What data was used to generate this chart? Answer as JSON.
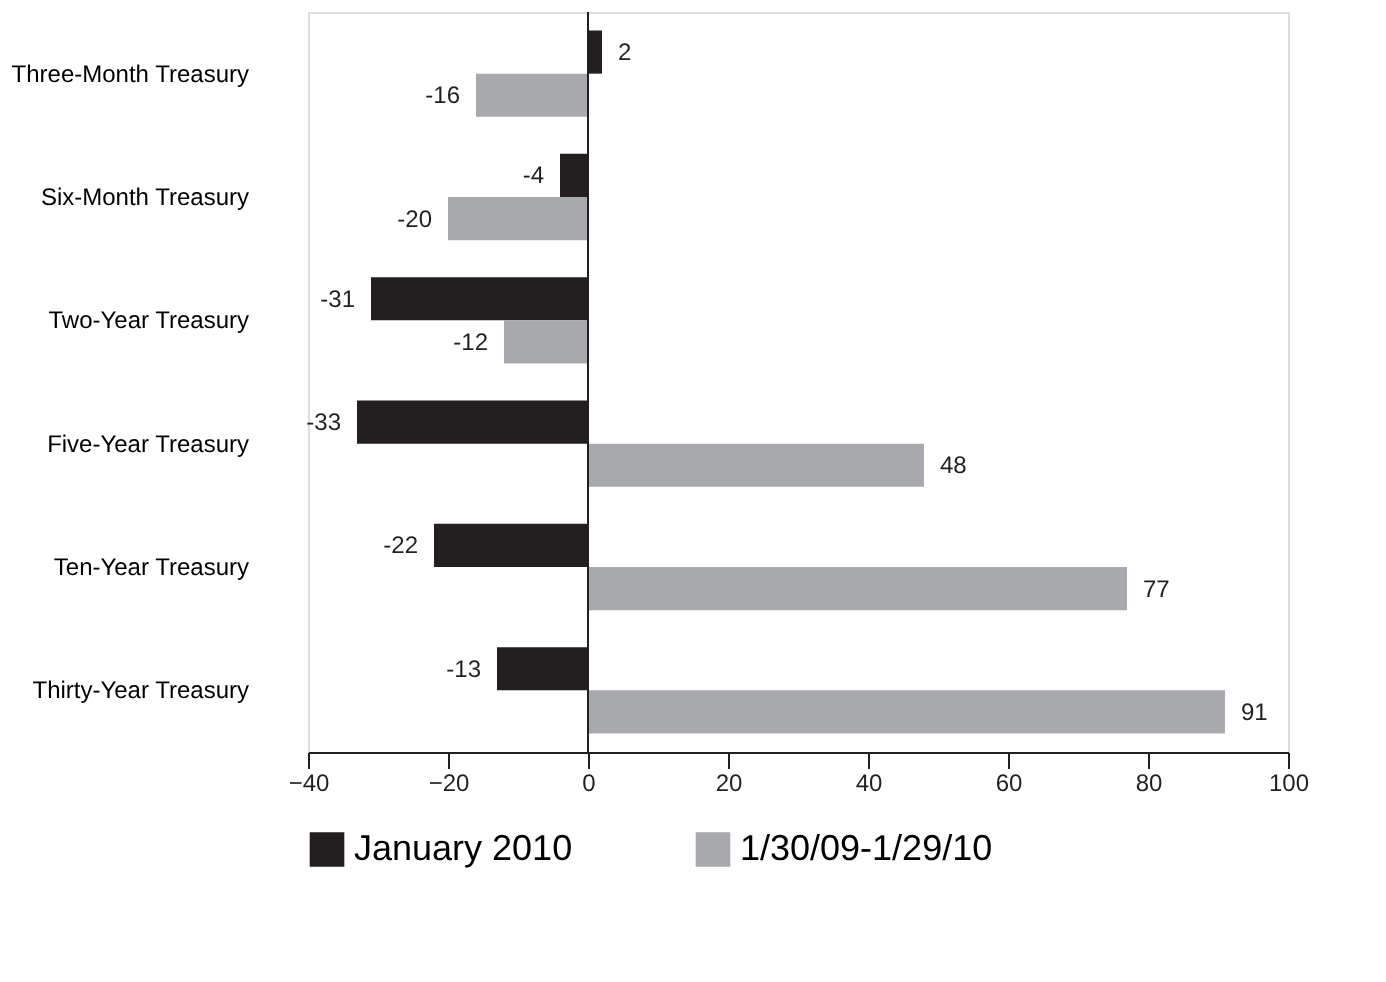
{
  "chart_data": {
    "type": "bar",
    "orientation": "horizontal",
    "categories": [
      "Three-Month Treasury",
      "Six-Month Treasury",
      "Two-Year Treasury",
      "Five-Year Treasury",
      "Ten-Year Treasury",
      "Thirty-Year Treasury"
    ],
    "series": [
      {
        "name": "January 2010",
        "color": "#231f20",
        "values": [
          2,
          -4,
          -31,
          -33,
          -22,
          -13
        ]
      },
      {
        "name": "1/30/09-1/29/10",
        "color": "#a7a9ac",
        "values": [
          -16,
          -20,
          -12,
          48,
          77,
          91
        ]
      }
    ],
    "xlim": [
      -40,
      100
    ],
    "xticks": [
      -40,
      -20,
      0,
      20,
      40,
      60,
      80,
      100
    ],
    "ref_lines": [
      {
        "axis": "x",
        "value": 0,
        "color": "#231f20"
      }
    ],
    "data_labels": true,
    "grid": false,
    "legend": "bottom"
  }
}
